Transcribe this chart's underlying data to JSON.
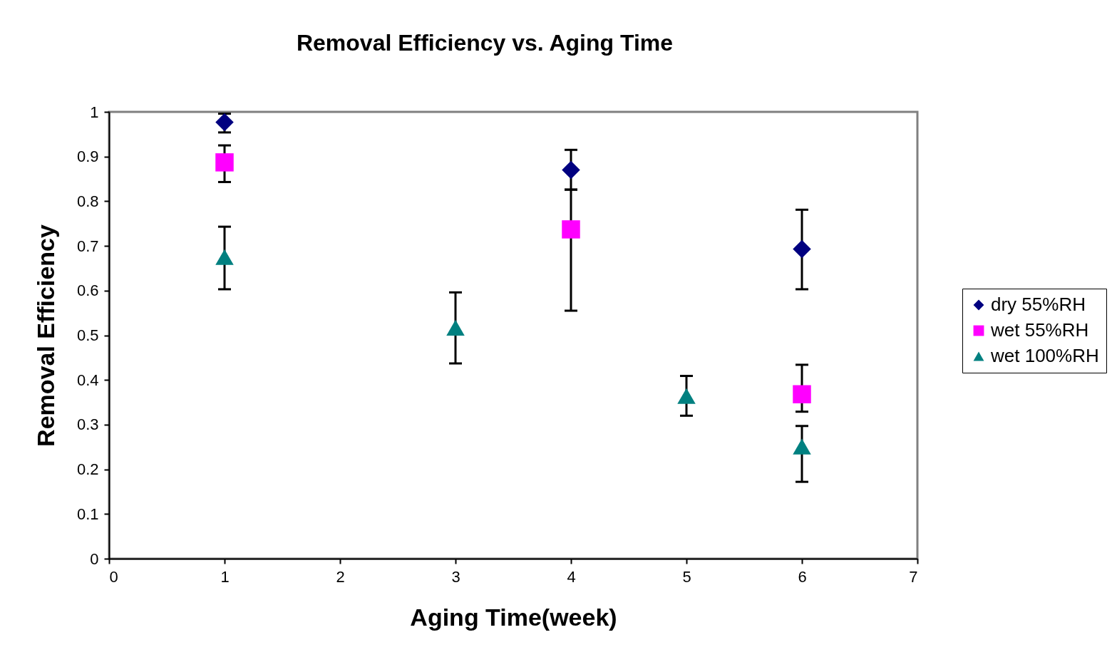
{
  "chart_data": {
    "type": "scatter",
    "title": "Removal Efficiency vs. Aging Time",
    "xlabel": "Aging Time(week)",
    "ylabel": "Removal Efficiency",
    "xlim": [
      0,
      7
    ],
    "xticks": [
      0,
      1,
      2,
      3,
      4,
      5,
      6,
      7
    ],
    "ylim": [
      0,
      1
    ],
    "yticks": [
      0,
      0.1,
      0.2,
      0.3,
      0.4,
      0.5,
      0.6,
      0.7,
      0.8,
      0.9,
      1
    ],
    "grid": false,
    "legend": "right",
    "series": [
      {
        "name": "dry 55%RH",
        "color": "#000080",
        "marker": "diamond",
        "x": [
          1,
          4,
          6
        ],
        "values": [
          0.977,
          0.87,
          0.693
        ],
        "errors": [
          [
            0.954,
            0.996
          ],
          [
            0.826,
            0.915
          ],
          [
            0.603,
            0.781
          ]
        ]
      },
      {
        "name": "wet 55%RH",
        "color": "#ff00ff",
        "marker": "square",
        "x": [
          1,
          4,
          6
        ],
        "values": [
          0.887,
          0.737,
          0.368
        ],
        "errors": [
          [
            0.843,
            0.925
          ],
          [
            0.555,
            0.826
          ],
          [
            0.329,
            0.434
          ]
        ]
      },
      {
        "name": "wet 100%RH",
        "color": "#008080",
        "marker": "triangle",
        "x": [
          1,
          3,
          5,
          6
        ],
        "values": [
          0.675,
          0.517,
          0.364,
          0.251
        ],
        "errors": [
          [
            0.603,
            0.743
          ],
          [
            0.437,
            0.596
          ],
          [
            0.32,
            0.409
          ],
          [
            0.172,
            0.297
          ]
        ]
      }
    ]
  }
}
